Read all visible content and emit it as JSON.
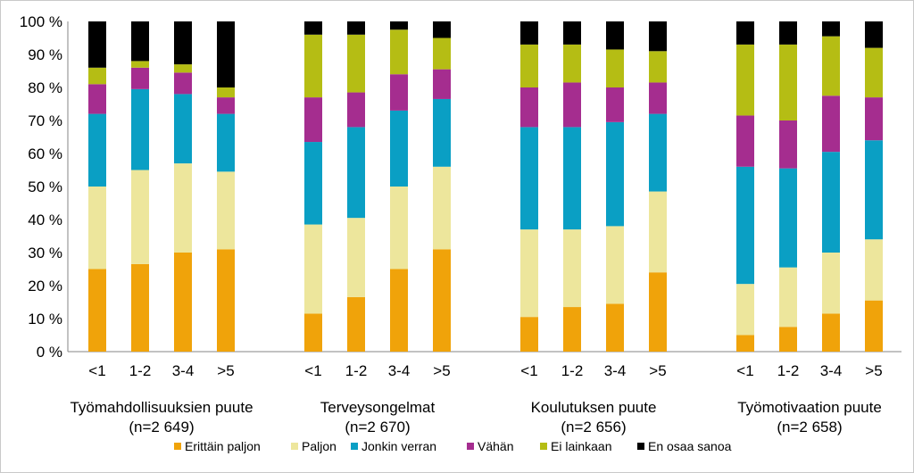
{
  "chart_data": {
    "type": "bar",
    "stacked": true,
    "percent": true,
    "ylim": [
      0,
      100
    ],
    "yticks": [
      "0 %",
      "10 %",
      "20 %",
      "30 %",
      "40 %",
      "50 %",
      "60 %",
      "70 %",
      "80 %",
      "90 %",
      "100 %"
    ],
    "categories": [
      "<1",
      "1-2",
      "3-4",
      ">5"
    ],
    "legend_position": "bottom",
    "series": [
      {
        "name": "Erittäin paljon",
        "color": "#f0a30a"
      },
      {
        "name": "Paljon",
        "color": "#ede69c"
      },
      {
        "name": "Jonkin verran",
        "color": "#0a9fc4"
      },
      {
        "name": "Vähän",
        "color": "#a52d8f"
      },
      {
        "name": "Ei lainkaan",
        "color": "#b5bd14"
      },
      {
        "name": "En osaa sanoa",
        "color": "#000000"
      }
    ],
    "groups": [
      {
        "label_line1": "Työmahdollisuuksien puute",
        "label_line2": "(n=2 649)",
        "values": [
          [
            25,
            25,
            22,
            9,
            5,
            14
          ],
          [
            26.5,
            28.5,
            24.5,
            6.5,
            2,
            12
          ],
          [
            30,
            27,
            21,
            6.5,
            2.5,
            13
          ],
          [
            31,
            23.5,
            17.5,
            5,
            3,
            20
          ]
        ]
      },
      {
        "label_line1": "Terveysongelmat",
        "label_line2": "(n=2 670)",
        "values": [
          [
            11.5,
            27,
            25,
            13.5,
            19,
            4
          ],
          [
            16.5,
            24,
            27.5,
            10.5,
            17.5,
            4
          ],
          [
            25,
            25,
            23,
            11,
            13.5,
            2.5
          ],
          [
            31,
            25,
            20.5,
            9,
            9.5,
            5
          ]
        ]
      },
      {
        "label_line1": "Koulutuksen puute",
        "label_line2": "(n=2 656)",
        "values": [
          [
            10.5,
            26.5,
            31,
            12,
            13,
            7
          ],
          [
            13.5,
            23.5,
            31,
            13.5,
            11.5,
            7
          ],
          [
            14.5,
            23.5,
            31.5,
            10.5,
            11.5,
            8.5
          ],
          [
            24,
            24.5,
            23.5,
            9.5,
            9.5,
            9
          ]
        ]
      },
      {
        "label_line1": "Työmotivaation puute",
        "label_line2": "(n=2 658)",
        "values": [
          [
            5,
            15.5,
            35.5,
            15.5,
            21.5,
            7
          ],
          [
            7.5,
            18,
            30,
            14.5,
            23,
            7
          ],
          [
            11.5,
            18.5,
            30.5,
            17,
            18,
            4.5
          ],
          [
            15.5,
            18.5,
            30,
            13,
            15,
            8
          ]
        ]
      }
    ]
  }
}
